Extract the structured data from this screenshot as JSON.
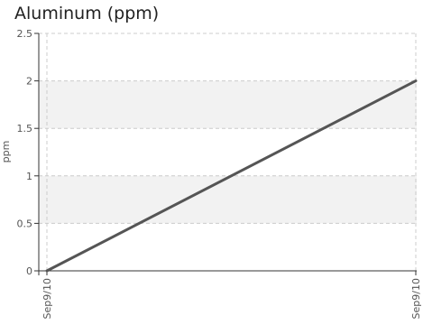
{
  "chart_data": {
    "type": "line",
    "title": "Aluminum (ppm)",
    "xlabel": "",
    "ylabel": "ppm",
    "categories": [
      "Sep9/10",
      "Sep9/10"
    ],
    "series": [
      {
        "values": [
          0,
          2
        ]
      }
    ],
    "ylim": [
      0,
      2.5
    ],
    "yticks": [
      "0",
      "0.5",
      "1",
      "1.5",
      "2",
      "2.5"
    ],
    "grid": true,
    "legend": "none",
    "colors": {
      "line": "#555555",
      "band": "#f2f2f2",
      "grid": "#cccccc",
      "axis": "#333333"
    }
  }
}
